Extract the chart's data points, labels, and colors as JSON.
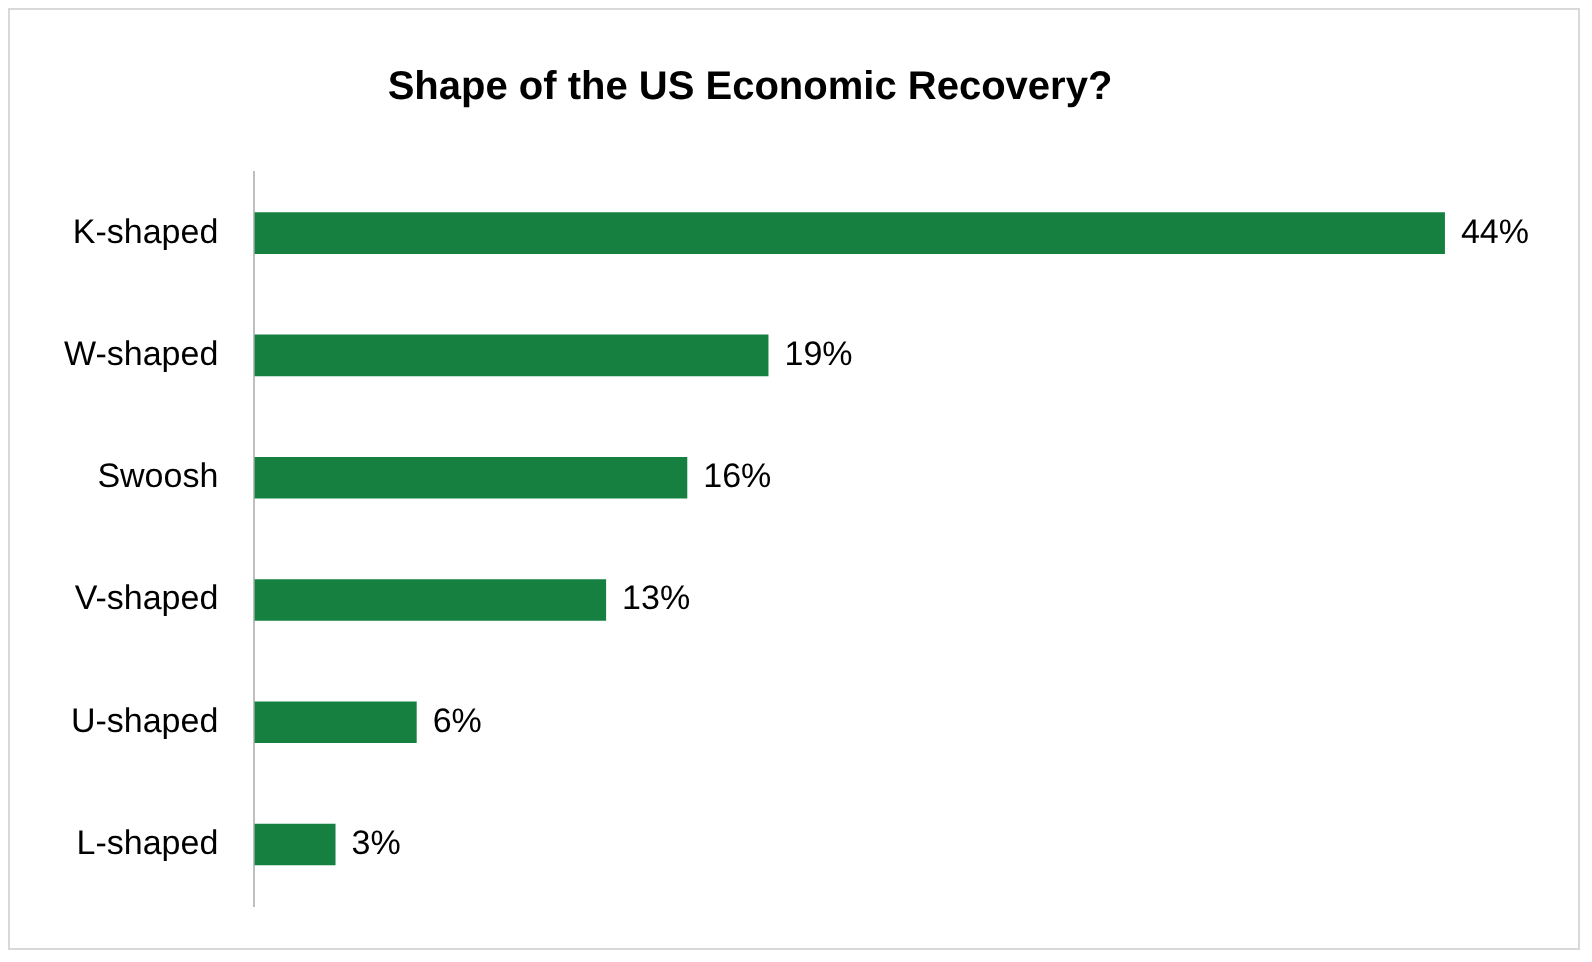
{
  "chart_data": {
    "type": "bar",
    "orientation": "horizontal",
    "title": "Shape of the US Economic Recovery?",
    "categories": [
      "K-shaped",
      "W-shaped",
      "Swoosh",
      "V-shaped",
      "U-shaped",
      "L-shaped"
    ],
    "values": [
      44,
      19,
      16,
      13,
      6,
      3
    ],
    "value_labels": [
      "44%",
      "19%",
      "16%",
      "13%",
      "6%",
      "3%"
    ],
    "color": "#168040",
    "tick_labels": "y"
  }
}
